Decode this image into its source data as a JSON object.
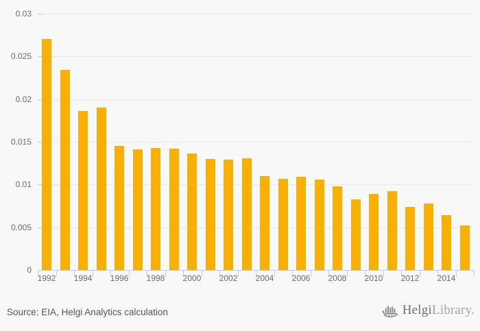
{
  "page": {
    "background_color": "#f8f8f8"
  },
  "footer": {
    "source_text": "Source: EIA, Helgi Analytics calculation",
    "logo": {
      "brand_part1": "Helgi",
      "brand_part2": "Library.",
      "icon": "viking-ship-bar-chart-icon",
      "icon_color": "#8d8d8d"
    }
  },
  "chart_data": {
    "type": "bar",
    "categories": [
      "1992",
      "1993",
      "1994",
      "1995",
      "1996",
      "1997",
      "1998",
      "1999",
      "2000",
      "2001",
      "2002",
      "2003",
      "2004",
      "2005",
      "2006",
      "2007",
      "2008",
      "2009",
      "2010",
      "2011",
      "2012",
      "2013",
      "2014",
      "2015"
    ],
    "values": [
      0.027,
      0.0234,
      0.0186,
      0.019,
      0.0145,
      0.0141,
      0.0143,
      0.0142,
      0.0136,
      0.013,
      0.0129,
      0.0131,
      0.011,
      0.0107,
      0.0109,
      0.0106,
      0.0098,
      0.0083,
      0.0089,
      0.0092,
      0.0074,
      0.0078,
      0.0064,
      0.0052
    ],
    "title": "",
    "xlabel": "",
    "ylabel": "",
    "ylim": [
      0,
      0.03
    ],
    "y_ticks": [
      0,
      0.005,
      0.01,
      0.015,
      0.02,
      0.025,
      0.03
    ],
    "y_tick_labels": [
      "0",
      "0.005",
      "0.01",
      "0.015",
      "0.02",
      "0.025",
      "0.03"
    ],
    "x_tick_labels_shown": [
      "1992",
      "1994",
      "1996",
      "1998",
      "2000",
      "2002",
      "2004",
      "2006",
      "2008",
      "2010",
      "2012",
      "2014"
    ],
    "grid": "horizontal",
    "legend": "none",
    "colors": {
      "bar": "#f9b005",
      "axis": "#c3cce6",
      "gridline": "#e8e8e8",
      "tick_label": "#6b6b6b"
    }
  }
}
